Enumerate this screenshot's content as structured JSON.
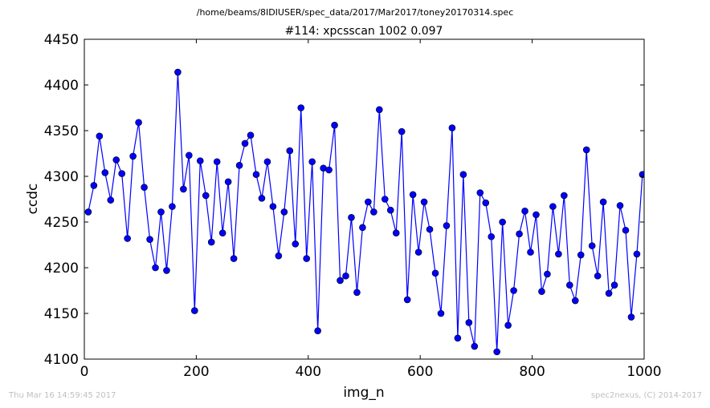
{
  "suptitle": "/home/beams/8IDIUSER/spec_data/2017/Mar2017/toney20170314.spec",
  "footer": {
    "timestamp": "Thu Mar 16 14:59:45 2017",
    "credit": "spec2nexus, (C) 2014-2017"
  },
  "colors": {
    "series": "#0000ff"
  },
  "chart_data": {
    "type": "line",
    "title": "#114: xpcsscan 1002 0.097",
    "xlabel": "img_n",
    "ylabel": "ccdc",
    "xlim": [
      0,
      1000
    ],
    "ylim": [
      4100,
      4450
    ],
    "xticks": [
      0,
      200,
      400,
      600,
      800,
      1000
    ],
    "yticks": [
      4100,
      4150,
      4200,
      4250,
      4300,
      4350,
      4400,
      4450
    ],
    "grid": false,
    "marker": "circle",
    "x": [
      7,
      17,
      27,
      37,
      47,
      57,
      67,
      77,
      87,
      97,
      107,
      117,
      127,
      137,
      147,
      157,
      167,
      177,
      187,
      197,
      207,
      217,
      227,
      237,
      247,
      257,
      267,
      277,
      287,
      297,
      307,
      317,
      327,
      337,
      347,
      357,
      367,
      377,
      387,
      397,
      407,
      417,
      427,
      437,
      447,
      457,
      467,
      477,
      487,
      497,
      507,
      517,
      527,
      537,
      547,
      557,
      567,
      577,
      587,
      597,
      607,
      617,
      627,
      637,
      647,
      657,
      667,
      677,
      687,
      697,
      707,
      717,
      727,
      737,
      747,
      757,
      767,
      777,
      787,
      797,
      807,
      817,
      827,
      837,
      847,
      857,
      867,
      877,
      887,
      897,
      907,
      917,
      927,
      937,
      947,
      957,
      967,
      977,
      987,
      997
    ],
    "y": [
      4261,
      4290,
      4344,
      4304,
      4274,
      4318,
      4303,
      4232,
      4322,
      4359,
      4288,
      4231,
      4200,
      4261,
      4197,
      4267,
      4414,
      4286,
      4323,
      4153,
      4317,
      4279,
      4228,
      4316,
      4238,
      4294,
      4210,
      4312,
      4336,
      4345,
      4302,
      4276,
      4316,
      4267,
      4213,
      4261,
      4328,
      4226,
      4375,
      4210,
      4316,
      4131,
      4309,
      4307,
      4356,
      4186,
      4191,
      4255,
      4173,
      4244,
      4272,
      4261,
      4373,
      4275,
      4263,
      4238,
      4349,
      4165,
      4280,
      4217,
      4272,
      4242,
      4194,
      4150,
      4246,
      4353,
      4123,
      4302,
      4140,
      4114,
      4282,
      4271,
      4234,
      4108,
      4250,
      4137,
      4175,
      4237,
      4262,
      4217,
      4258,
      4174,
      4193,
      4267,
      4215,
      4279,
      4181,
      4164,
      4214,
      4329,
      4224,
      4191,
      4272,
      4172,
      4181,
      4268,
      4241,
      4146,
      4215,
      4302
    ]
  }
}
